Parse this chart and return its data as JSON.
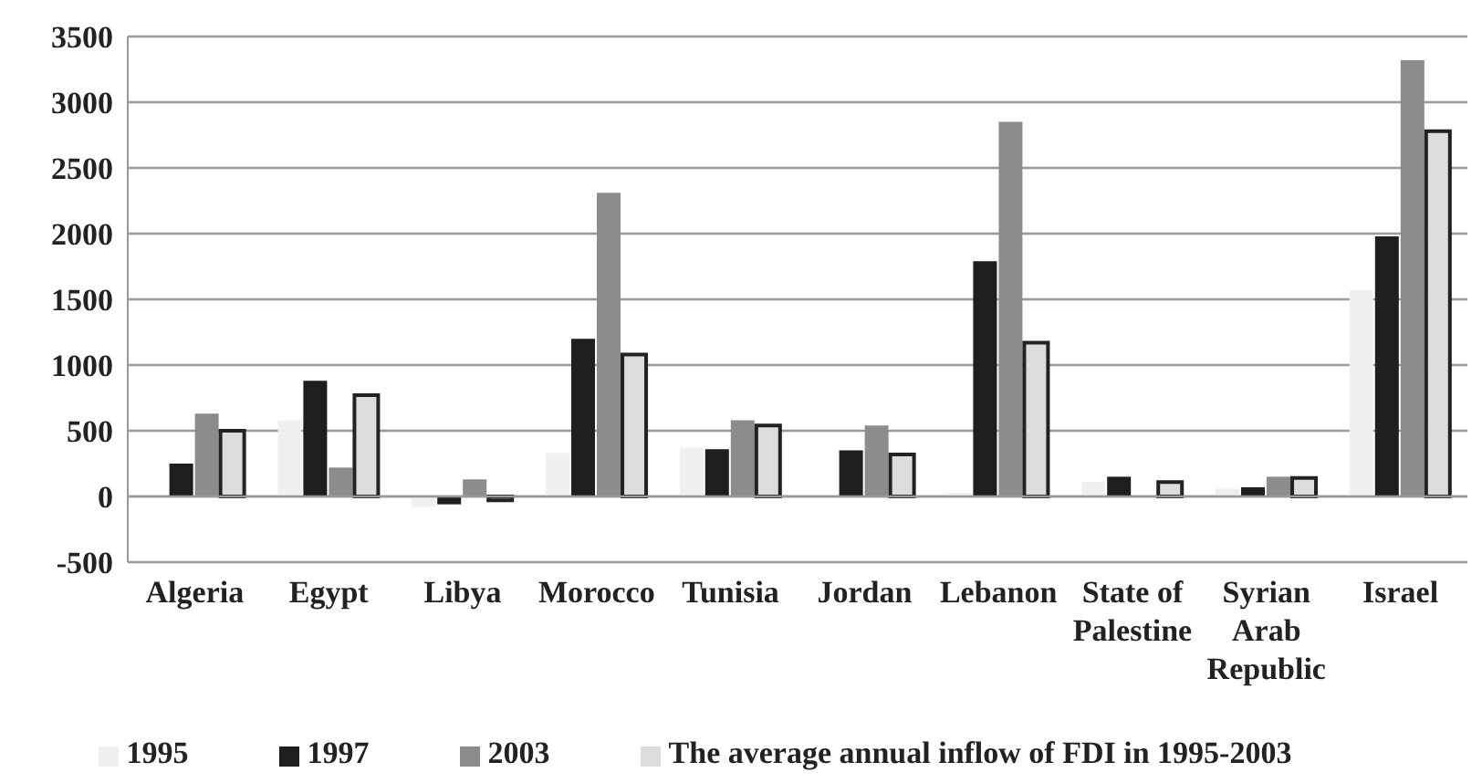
{
  "chart_data": {
    "type": "bar",
    "categories": [
      "Algeria",
      "Egypt",
      "Libya",
      "Morocco",
      "Tunisia",
      "Jordan",
      "Lebanon",
      "State of Palestine",
      "Syrian Arab Republic",
      "Israel"
    ],
    "series": [
      {
        "name": "1995",
        "color": "#f0f0f0",
        "values": [
          0,
          580,
          -80,
          330,
          370,
          10,
          30,
          110,
          60,
          1570
        ]
      },
      {
        "name": "1997",
        "color": "#1e1e1e",
        "values": [
          250,
          880,
          -60,
          1200,
          360,
          350,
          1790,
          150,
          70,
          1980
        ]
      },
      {
        "name": "2003",
        "color": "#8c8c8c",
        "values": [
          630,
          220,
          130,
          2310,
          580,
          540,
          2850,
          0,
          150,
          3320
        ]
      },
      {
        "name": "The average annual inflow of FDI in 1995-2003",
        "color": "#dcdcdc",
        "values": [
          500,
          770,
          -30,
          1080,
          540,
          320,
          1170,
          110,
          140,
          2780
        ]
      }
    ],
    "ylim": [
      -500,
      3500
    ],
    "yticks": [
      -500,
      0,
      500,
      1000,
      1500,
      2000,
      2500,
      3000,
      3500
    ],
    "grid": "y",
    "legend": "bottom"
  }
}
